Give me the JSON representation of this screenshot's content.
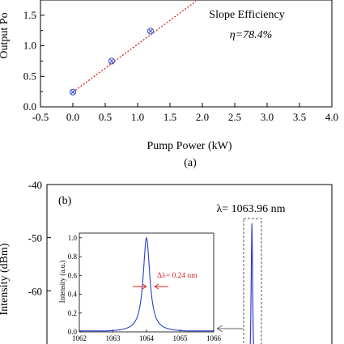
{
  "chart_data": [
    {
      "type": "scatter",
      "panel_label": "(a)",
      "xlabel": "Pump Power (kW)",
      "ylabel": "Output Po",
      "xlim": [
        -0.5,
        4.0
      ],
      "ylim": [
        0.0,
        1.75
      ],
      "xticks": [
        "-0.5",
        "0.0",
        "0.5",
        "1.0",
        "1.5",
        "2.0",
        "2.5",
        "3.0",
        "3.5",
        "4.0"
      ],
      "yticks": [
        "0.0",
        "0.5",
        "1.0",
        "1.5"
      ],
      "series": [
        {
          "x": [
            0.0,
            0.6,
            1.2
          ],
          "y": [
            0.24,
            0.75,
            1.24
          ]
        }
      ],
      "fit_line": {
        "x": [
          0.0,
          1.9
        ],
        "y": [
          0.24,
          1.73
        ]
      },
      "annotation": {
        "title": "Slope Efficiency",
        "value": "η=78.4%"
      },
      "colors": {
        "marker": "#3a4fcc",
        "fit": "#e02020"
      }
    },
    {
      "type": "line",
      "panel_label": "(b)",
      "ylabel": "Intensity  (dBm)",
      "yticks": [
        "-40",
        "-50",
        "-60"
      ],
      "ylim": [
        -72,
        -40
      ],
      "peak_label": "λ= 1063.96 nm",
      "colors": {
        "line": "#2b3fd0",
        "label": "#e02020",
        "frame": "#555555"
      },
      "inset": {
        "type": "line",
        "xlabel": "",
        "ylabel": "Intensity  (a.u.)",
        "xlim": [
          1062,
          1066
        ],
        "ylim": [
          0.0,
          1.05
        ],
        "xticks": [
          "1062",
          "1063",
          "1064",
          "1065",
          "1066"
        ],
        "yticks": [
          "0.0",
          "0.2",
          "0.4",
          "0.6",
          "0.8",
          "1.0"
        ],
        "peak_x": 1064.0,
        "fwhm_label": "Δλ= 0.24 nm"
      }
    }
  ]
}
